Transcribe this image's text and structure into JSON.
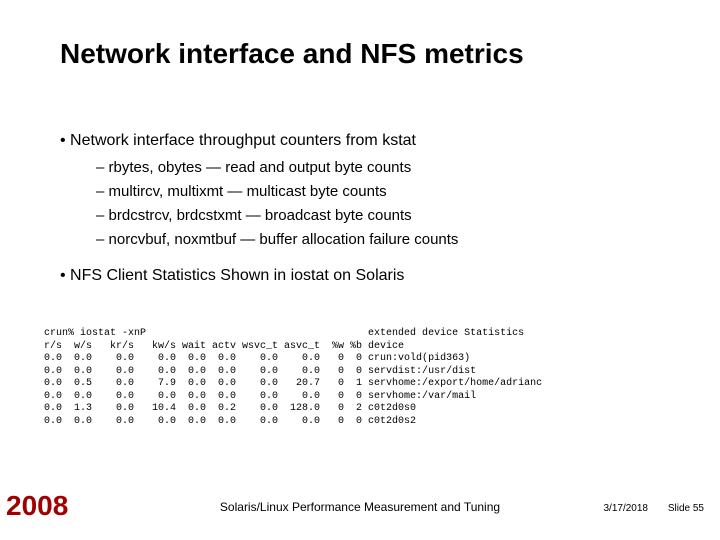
{
  "title": "Network interface and NFS metrics",
  "bullet1": "•  Network interface throughput counters from kstat",
  "sub1": "–  rbytes, obytes — read and output byte counts",
  "sub2": "–  multircv, multixmt — multicast byte counts",
  "sub3": "–  brdcstrcv, brdcstxmt — broadcast byte counts",
  "sub4": "–  norcvbuf, noxmtbuf — buffer allocation failure counts",
  "bullet2": "•  NFS Client Statistics Shown in iostat on Solaris",
  "mono": "crun% iostat -xnP                                     extended device Statistics\nr/s  w/s   kr/s   kw/s wait actv wsvc_t asvc_t  %w %b device\n0.0  0.0    0.0    0.0  0.0  0.0    0.0    0.0   0  0 crun:vold(pid363)\n0.0  0.0    0.0    0.0  0.0  0.0    0.0    0.0   0  0 servdist:/usr/dist\n0.0  0.5    0.0    7.9  0.0  0.0    0.0   20.7   0  1 servhome:/export/home/adrianc\n0.0  0.0    0.0    0.0  0.0  0.0    0.0    0.0   0  0 servhome:/var/mail\n0.0  1.3    0.0   10.4  0.0  0.2    0.0  128.0   0  2 c0t2d0s0\n0.0  0.0    0.0    0.0  0.0  0.0    0.0    0.0   0  0 c0t2d0s2",
  "year": "2008",
  "footer_center": "Solaris/Linux Performance Measurement and Tuning",
  "footer_date": "3/17/2018",
  "footer_slide": "Slide 55",
  "colors": {
    "background": "#ffffff",
    "text": "#000000",
    "year": "#a00000"
  },
  "fonts": {
    "title_size_pt": 28,
    "body_size_pt": 16,
    "sub_size_pt": 15,
    "mono_size_pt": 10,
    "footer_size_pt": 12,
    "small_size_pt": 10
  }
}
